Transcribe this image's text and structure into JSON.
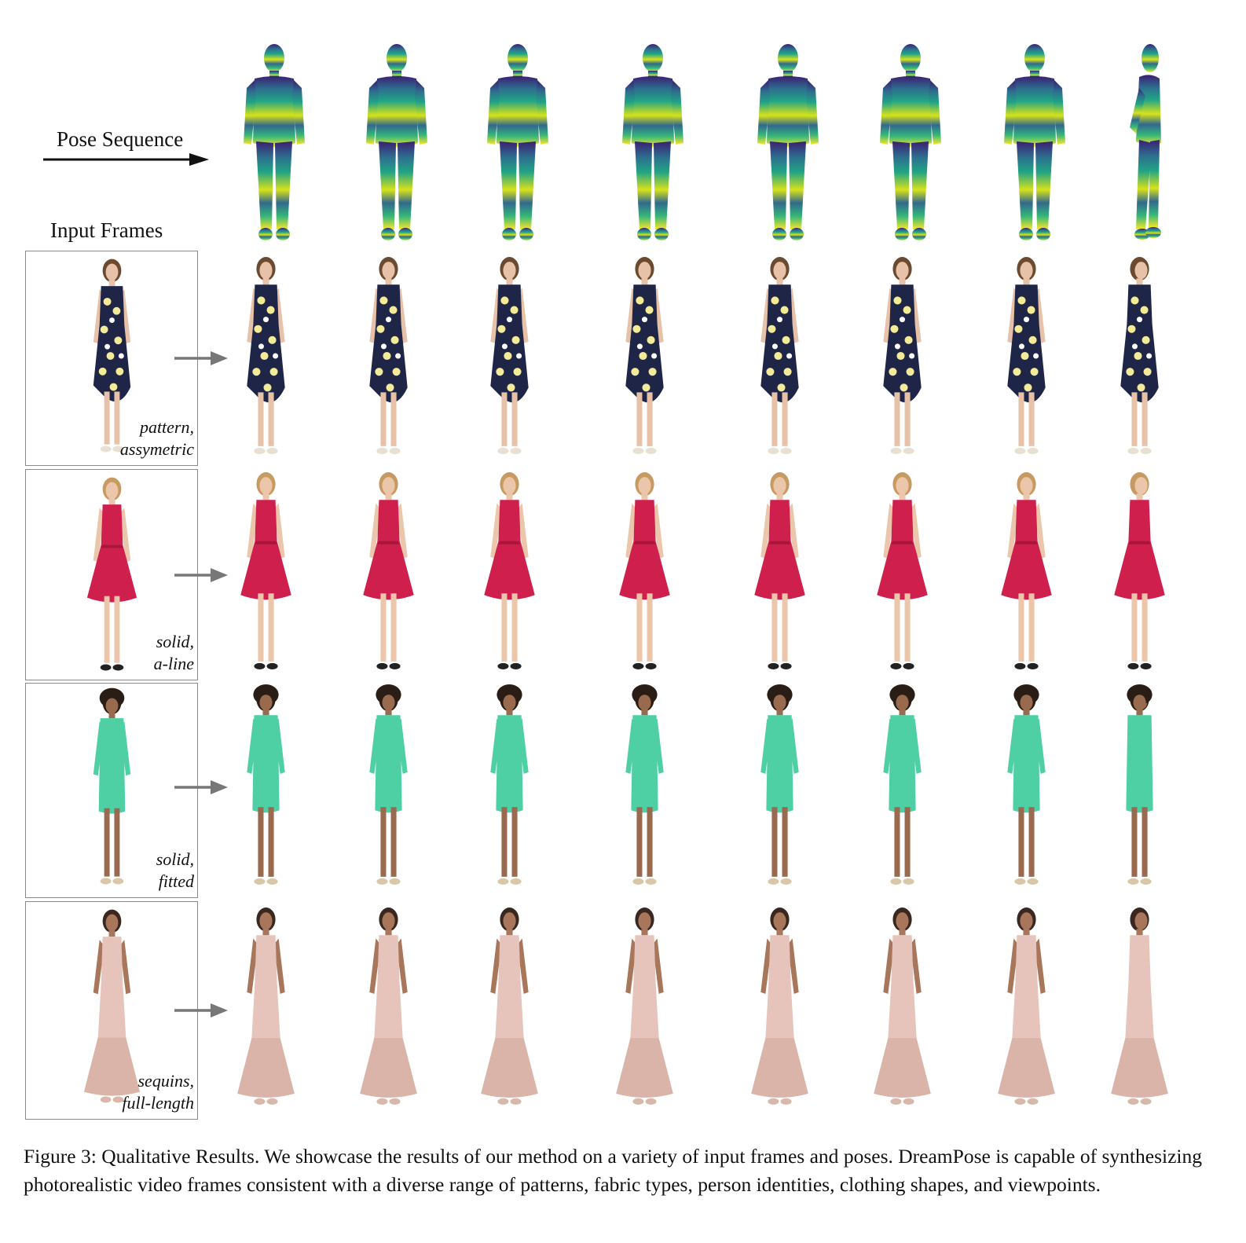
{
  "figure": {
    "pose_label": "Pose Sequence",
    "input_label": "Input Frames",
    "caption": "Figure 3: Qualitative Results. We showcase the results of our method on a variety of input frames and poses. DreamPose is capable of synthesizing photorealistic video frames consistent with a diverse range of patterns, fabric types, person identities, clothing shapes, and viewpoints.",
    "rows": [
      {
        "tag_line1": "pattern,",
        "tag_line2": "assymetric",
        "style": "floral",
        "dress": "#1f2547",
        "accent": "#f3ea9a",
        "hair": "#6b4a2f",
        "shoe": "#e8e0d2",
        "skin": "#e7c2a8"
      },
      {
        "tag_line1": "solid,",
        "tag_line2": "a-line",
        "style": "aline",
        "dress": "#cf1f4d",
        "accent": "#a8163a",
        "hair": "#c79a62",
        "shoe": "#222222",
        "skin": "#ebc6ab"
      },
      {
        "tag_line1": "solid,",
        "tag_line2": "fitted",
        "style": "fitted",
        "dress": "#4fcfa4",
        "accent": "#3db58d",
        "hair": "#2a1d16",
        "shoe": "#d9c8a8",
        "skin": "#9a6a4e"
      },
      {
        "tag_line1": "sequins,",
        "tag_line2": "full-length",
        "style": "gown",
        "dress": "#e6c4bb",
        "accent": "#cfa59a",
        "hair": "#3a2820",
        "shoe": "#d8b8aa",
        "skin": "#a8765a"
      }
    ]
  }
}
